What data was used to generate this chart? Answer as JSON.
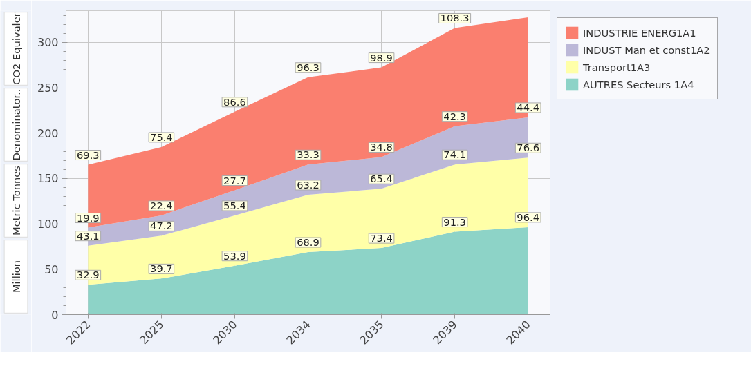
{
  "chart_data": {
    "type": "area",
    "stacked": true,
    "categories": [
      "2022",
      "2025",
      "2030",
      "2034",
      "2035",
      "2039",
      "2040"
    ],
    "series": [
      {
        "name": "AUTRES Secteurs 1A4",
        "color": "#8dd3c7",
        "values": [
          32.9,
          39.7,
          53.9,
          68.9,
          73.4,
          91.3,
          96.4
        ]
      },
      {
        "name": "Transport1A3",
        "color": "#ffffa8",
        "values": [
          43.1,
          47.2,
          55.4,
          63.2,
          65.4,
          74.1,
          76.6
        ]
      },
      {
        "name": "INDUST Man et const1A2",
        "color": "#bcb8d8",
        "values": [
          19.9,
          22.4,
          27.7,
          33.3,
          34.8,
          42.3,
          44.4
        ]
      },
      {
        "name": "INDUSTRIE ENERG1A1",
        "color": "#fa7f6f",
        "values": [
          69.3,
          75.4,
          86.6,
          96.3,
          98.9,
          108.3,
          110.3
        ],
        "value_labels": [
          "69.3",
          "75.4",
          "86.6",
          "96.3",
          "98.9",
          "108.3",
          null
        ]
      }
    ],
    "annotations": [
      "Million",
      "Metric Tonnes",
      "Denominator..",
      "CO2 Equivaler"
    ],
    "ylim": [
      0,
      335
    ],
    "yticks": [
      0,
      50,
      100,
      150,
      200,
      250,
      300
    ],
    "grid": true,
    "legend": "top right",
    "data_labels": true
  }
}
